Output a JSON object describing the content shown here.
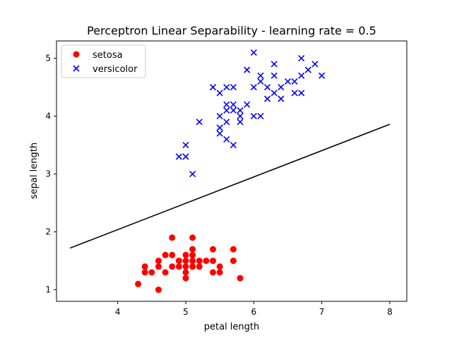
{
  "chart_data": {
    "type": "scatter",
    "title": "Perceptron Linear Separability - learning rate = 0.5",
    "xlabel": "petal length",
    "ylabel": "sepal length",
    "xlim": [
      3.1,
      8.25
    ],
    "ylim": [
      0.8,
      5.3
    ],
    "xticks": [
      4,
      5,
      6,
      7,
      8
    ],
    "yticks": [
      1,
      2,
      3,
      4,
      5
    ],
    "grid": false,
    "legend": {
      "placement": "top-left"
    },
    "series": [
      {
        "name": "setosa",
        "marker": "circle",
        "color": "#ff0000",
        "points": [
          [
            4.3,
            1.1
          ],
          [
            4.4,
            1.3
          ],
          [
            4.4,
            1.4
          ],
          [
            4.5,
            1.3
          ],
          [
            4.6,
            1.0
          ],
          [
            4.6,
            1.4
          ],
          [
            4.6,
            1.5
          ],
          [
            4.7,
            1.3
          ],
          [
            4.7,
            1.6
          ],
          [
            4.8,
            1.4
          ],
          [
            4.8,
            1.6
          ],
          [
            4.8,
            1.9
          ],
          [
            4.9,
            1.4
          ],
          [
            4.9,
            1.5
          ],
          [
            5.0,
            1.2
          ],
          [
            5.0,
            1.3
          ],
          [
            5.0,
            1.4
          ],
          [
            5.0,
            1.5
          ],
          [
            5.0,
            1.6
          ],
          [
            5.1,
            1.4
          ],
          [
            5.1,
            1.5
          ],
          [
            5.1,
            1.6
          ],
          [
            5.1,
            1.7
          ],
          [
            5.1,
            1.9
          ],
          [
            5.2,
            1.4
          ],
          [
            5.2,
            1.5
          ],
          [
            5.3,
            1.5
          ],
          [
            5.4,
            1.3
          ],
          [
            5.4,
            1.5
          ],
          [
            5.4,
            1.7
          ],
          [
            5.5,
            1.3
          ],
          [
            5.5,
            1.4
          ],
          [
            5.7,
            1.5
          ],
          [
            5.7,
            1.7
          ],
          [
            5.8,
            1.2
          ]
        ]
      },
      {
        "name": "versicolor",
        "marker": "x",
        "color": "#0000ff",
        "points": [
          [
            4.9,
            3.3
          ],
          [
            5.0,
            3.3
          ],
          [
            5.0,
            3.5
          ],
          [
            5.1,
            3.0
          ],
          [
            5.2,
            3.9
          ],
          [
            5.4,
            4.5
          ],
          [
            5.5,
            3.7
          ],
          [
            5.5,
            3.8
          ],
          [
            5.5,
            4.0
          ],
          [
            5.5,
            4.4
          ],
          [
            5.6,
            3.6
          ],
          [
            5.6,
            3.9
          ],
          [
            5.6,
            4.1
          ],
          [
            5.6,
            4.2
          ],
          [
            5.6,
            4.5
          ],
          [
            5.7,
            3.5
          ],
          [
            5.7,
            4.1
          ],
          [
            5.7,
            4.2
          ],
          [
            5.7,
            4.5
          ],
          [
            5.8,
            3.9
          ],
          [
            5.8,
            4.0
          ],
          [
            5.8,
            4.1
          ],
          [
            5.9,
            4.2
          ],
          [
            5.9,
            4.8
          ],
          [
            6.0,
            4.0
          ],
          [
            6.0,
            4.5
          ],
          [
            6.0,
            5.1
          ],
          [
            6.1,
            4.0
          ],
          [
            6.1,
            4.6
          ],
          [
            6.1,
            4.7
          ],
          [
            6.2,
            4.3
          ],
          [
            6.2,
            4.5
          ],
          [
            6.3,
            4.4
          ],
          [
            6.3,
            4.7
          ],
          [
            6.3,
            4.9
          ],
          [
            6.4,
            4.3
          ],
          [
            6.4,
            4.5
          ],
          [
            6.5,
            4.6
          ],
          [
            6.6,
            4.4
          ],
          [
            6.6,
            4.6
          ],
          [
            6.7,
            4.4
          ],
          [
            6.7,
            4.7
          ],
          [
            6.7,
            5.0
          ],
          [
            6.8,
            4.8
          ],
          [
            6.9,
            4.9
          ],
          [
            7.0,
            4.7
          ]
        ]
      }
    ],
    "decision_boundary": {
      "color": "#000000",
      "points": [
        [
          3.3,
          1.72
        ],
        [
          8.0,
          3.86
        ]
      ]
    }
  }
}
